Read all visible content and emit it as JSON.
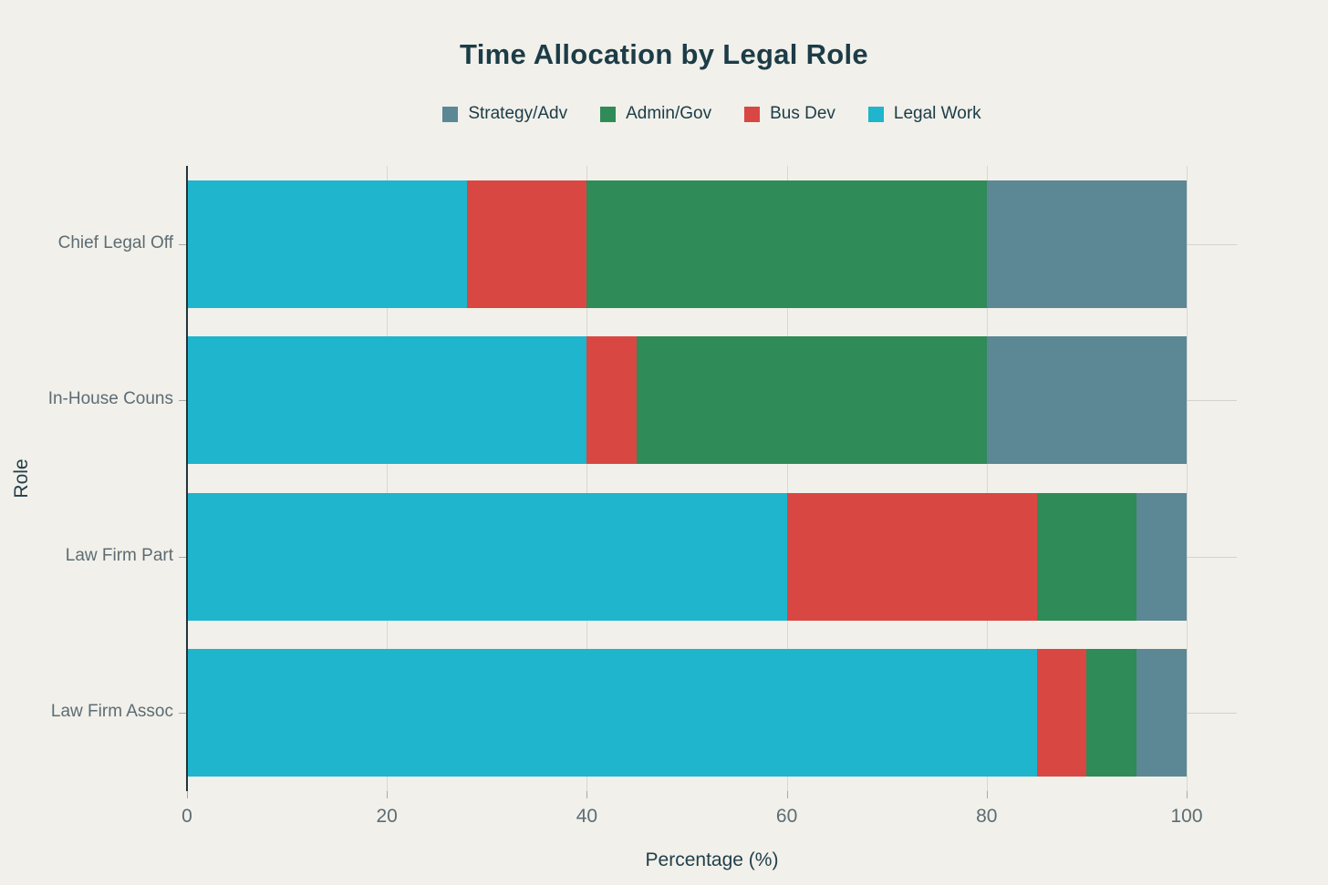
{
  "title": "Time Allocation by Legal Role",
  "colors": {
    "background": "#f1f0ea",
    "title_text": "#1c3c47",
    "tick_text": "#5d6c73",
    "axis_title_text": "#223f4a",
    "grid": "#d8d7d1",
    "axis_spine": "#22343c",
    "legal_work": "#1fb5cc",
    "bus_dev": "#d94743",
    "admin_gov": "#2f8b57",
    "strategy_adv": "#5b8894"
  },
  "legend": {
    "items": [
      {
        "label": "Strategy/Adv",
        "color": "#5b8894"
      },
      {
        "label": "Admin/Gov",
        "color": "#2f8b57"
      },
      {
        "label": "Bus Dev",
        "color": "#d94743"
      },
      {
        "label": "Legal Work",
        "color": "#1fb5cc"
      }
    ]
  },
  "chart_data": {
    "type": "bar",
    "orientation": "horizontal",
    "stacked": true,
    "title": "Time Allocation by Legal Role",
    "xlabel": "Percentage (%)",
    "ylabel": "Role",
    "xlim": [
      0,
      100
    ],
    "xticks": [
      0,
      20,
      40,
      60,
      80,
      100
    ],
    "grid": true,
    "legend_position": "top",
    "categories": [
      "Chief Legal Off",
      "In-House Couns",
      "Law Firm Part",
      "Law Firm Assoc"
    ],
    "series": [
      {
        "name": "Legal Work",
        "color": "#1fb5cc",
        "values": [
          28,
          40,
          60,
          85
        ]
      },
      {
        "name": "Bus Dev",
        "color": "#d94743",
        "values": [
          12,
          5,
          25,
          5
        ]
      },
      {
        "name": "Admin/Gov",
        "color": "#2f8b57",
        "values": [
          40,
          35,
          10,
          5
        ]
      },
      {
        "name": "Strategy/Adv",
        "color": "#5b8894",
        "values": [
          20,
          20,
          5,
          5
        ]
      }
    ]
  }
}
